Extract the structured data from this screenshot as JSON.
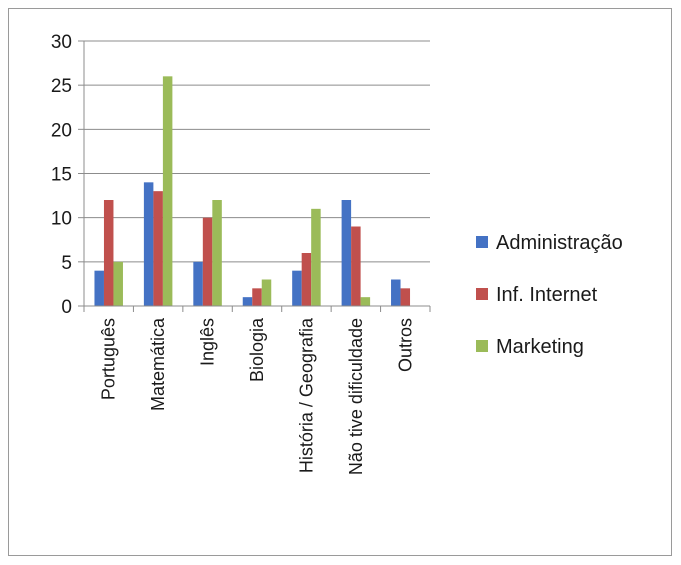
{
  "chart_data": {
    "type": "bar",
    "title": "",
    "xlabel": "",
    "ylabel": "",
    "ylim": [
      0,
      30
    ],
    "yticks": [
      0,
      5,
      10,
      15,
      20,
      25,
      30
    ],
    "grid": "horizontal",
    "legend_position": "right",
    "categories": [
      "Português",
      "Matemática",
      "Inglês",
      "Biologia",
      "História / Geografia",
      "Não tive dificuldade",
      "Outros"
    ],
    "series": [
      {
        "name": "Administração",
        "color": "#4472C4",
        "values": [
          4,
          14,
          5,
          1,
          4,
          12,
          3
        ]
      },
      {
        "name": "Inf. Internet",
        "color": "#C0504D",
        "values": [
          12,
          13,
          10,
          2,
          6,
          9,
          2
        ]
      },
      {
        "name": "Marketing",
        "color": "#9BBB59",
        "values": [
          5,
          26,
          12,
          3,
          11,
          1,
          0
        ]
      }
    ]
  }
}
